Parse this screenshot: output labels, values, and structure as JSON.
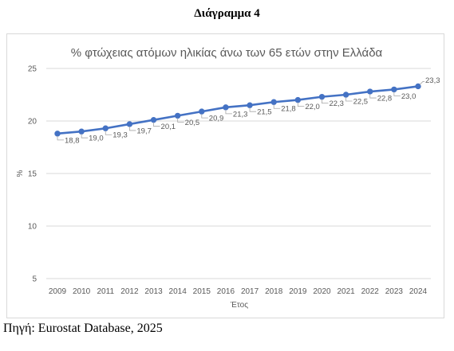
{
  "figure": {
    "caption": "Διάγραμμα 4",
    "source": "Πηγή: Eurostat Database, 2025"
  },
  "chart_data": {
    "type": "line",
    "title": "% φτώχειας ατόμων ηλικίας άνω των 65 ετών στην Ελλάδα",
    "xlabel": "Έτος",
    "ylabel": "%",
    "categories": [
      "2009",
      "2010",
      "2011",
      "2012",
      "2013",
      "2014",
      "2015",
      "2016",
      "2017",
      "2018",
      "2019",
      "2020",
      "2021",
      "2022",
      "2023",
      "2024"
    ],
    "series": [
      {
        "values": [
          18.8,
          19.0,
          19.3,
          19.7,
          20.1,
          20.5,
          20.9,
          21.3,
          21.5,
          21.8,
          22.0,
          22.3,
          22.5,
          22.8,
          23.0,
          23.3
        ],
        "labels": [
          "18,8",
          "19,0",
          "19,3",
          "19,7",
          "20,1",
          "20,5",
          "20,9",
          "21,3",
          "21,5",
          "21,8",
          "22,0",
          "22,3",
          "22,5",
          "22,8",
          "23,0",
          "23,3"
        ],
        "color": "#4472c4"
      }
    ],
    "ylim": [
      5,
      25
    ],
    "yticks": [
      5,
      10,
      15,
      20,
      25
    ],
    "grid": true,
    "legend": "none",
    "colors": {
      "line": "#4472c4",
      "grid": "#d9d9d9",
      "text": "#595959",
      "leader": "#a6a6a6"
    }
  }
}
